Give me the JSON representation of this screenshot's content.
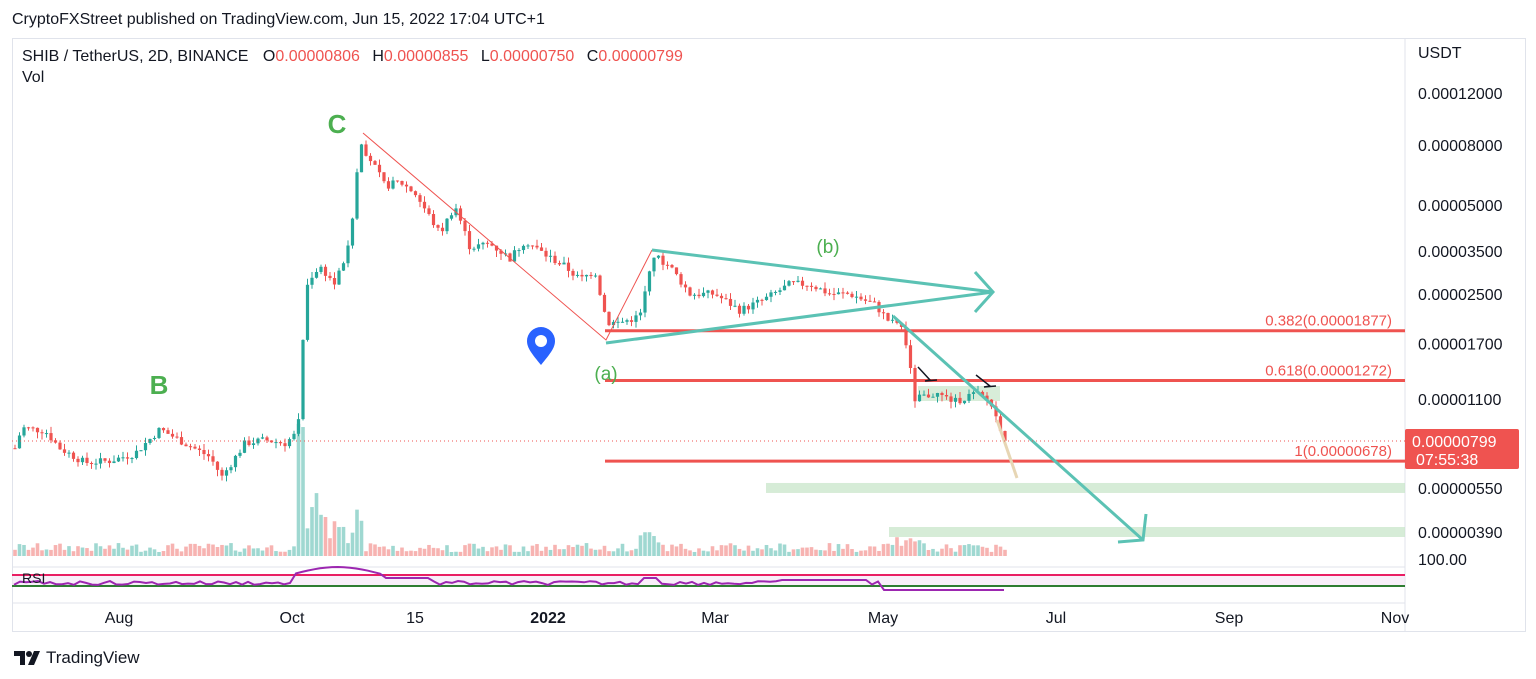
{
  "header": {
    "published": "CryptoFXStreet published on TradingView.com, Jun 15, 2022 17:04 UTC+1"
  },
  "footer": {
    "brand": "TradingView",
    "logo_icon": "tradingview-logo-icon"
  },
  "colors": {
    "up": "#26a69a",
    "down": "#ef5350",
    "wave_label": "#4caf50",
    "channel": "#5bc2b4",
    "fib": "#ef5350",
    "rsi": "#9c27b0",
    "rsi_band": "#e91e63",
    "price_badge": "#ef5350",
    "marker": "#2962ff"
  },
  "chart_data": {
    "type": "candlestick",
    "symbol_line": {
      "symbol": "SHIB / TetherUS, 2D, BINANCE",
      "o_label": "O",
      "o": "0.00000806",
      "h_label": "H",
      "h": "0.00000855",
      "l_label": "L",
      "l": "0.00000750",
      "c_label": "C",
      "c": "0.00000799"
    },
    "volume_label": "Vol",
    "currency": "USDT",
    "y_scale": "log",
    "y_ticks": [
      "0.00012000",
      "0.00008000",
      "0.00005000",
      "0.00003500",
      "0.00002500",
      "0.00001700",
      "0.00001100",
      "0.00000550",
      "0.00000390"
    ],
    "x_ticks": [
      "Aug",
      "Oct",
      "15",
      "2022",
      "Mar",
      "May",
      "Jul",
      "Sep",
      "Nov"
    ],
    "last_price": "0.00000799",
    "countdown": "07:55:38",
    "rsi": {
      "label": "RSI",
      "axis_value": "100.00"
    },
    "fib_levels": [
      {
        "label": "0.382(0.00001877)",
        "value": 1.877e-05
      },
      {
        "label": "0.618(0.00001272)",
        "value": 1.272e-05
      },
      {
        "label": "1(0.00000678)",
        "value": 6.78e-06
      }
    ],
    "wave_labels": [
      {
        "text": "B"
      },
      {
        "text": "C"
      },
      {
        "text": "(a)"
      },
      {
        "text": "(b)"
      }
    ],
    "support_zones": [
      5.5e-06,
      3.9e-06
    ]
  }
}
